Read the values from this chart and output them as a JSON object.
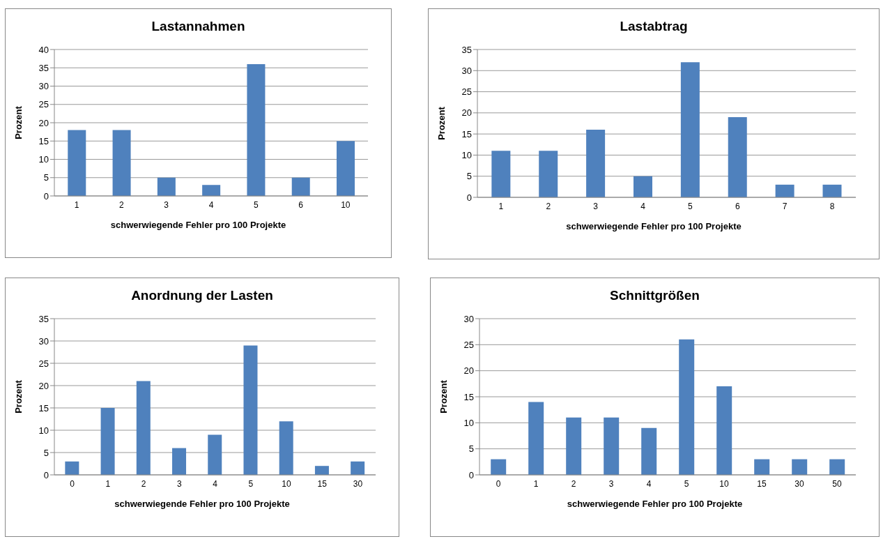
{
  "chart_data": [
    {
      "type": "bar",
      "title": "Lastannahmen",
      "xlabel": "schwerwiegende Fehler pro 100 Projekte",
      "ylabel": "Prozent",
      "categories": [
        "1",
        "2",
        "3",
        "4",
        "5",
        "6",
        "10"
      ],
      "values": [
        18,
        18,
        5,
        3,
        36,
        5,
        15
      ],
      "color": "#4f81bd",
      "ylim": [
        0,
        40
      ],
      "yticks": [
        0,
        5,
        10,
        15,
        20,
        25,
        30,
        35,
        40
      ],
      "grid": "y"
    },
    {
      "type": "bar",
      "title": "Lastabtrag",
      "xlabel": "schwerwiegende Fehler pro 100 Projekte",
      "ylabel": "Prozent",
      "categories": [
        "1",
        "2",
        "3",
        "4",
        "5",
        "6",
        "7",
        "8"
      ],
      "values": [
        11,
        11,
        16,
        5,
        32,
        19,
        3,
        3
      ],
      "color": "#4f81bd",
      "ylim": [
        0,
        35
      ],
      "yticks": [
        0,
        5,
        10,
        15,
        20,
        25,
        30,
        35
      ],
      "grid": "y"
    },
    {
      "type": "bar",
      "title": "Anordnung der Lasten",
      "xlabel": "schwerwiegende Fehler pro 100 Projekte",
      "ylabel": "Prozent",
      "categories": [
        "0",
        "1",
        "2",
        "3",
        "4",
        "5",
        "10",
        "15",
        "30"
      ],
      "values": [
        3,
        15,
        21,
        6,
        9,
        29,
        12,
        2,
        3
      ],
      "color": "#4f81bd",
      "ylim": [
        0,
        35
      ],
      "yticks": [
        0,
        5,
        10,
        15,
        20,
        25,
        30,
        35
      ],
      "grid": "y"
    },
    {
      "type": "bar",
      "title": "Schnittgrößen",
      "xlabel": "schwerwiegende Fehler pro 100 Projekte",
      "ylabel": "Prozent",
      "categories": [
        "0",
        "1",
        "2",
        "3",
        "4",
        "5",
        "10",
        "15",
        "30",
        "50"
      ],
      "values": [
        3,
        14,
        11,
        11,
        9,
        26,
        17,
        3,
        3,
        3
      ],
      "color": "#4f81bd",
      "ylim": [
        0,
        30
      ],
      "yticks": [
        0,
        5,
        10,
        15,
        20,
        25,
        30
      ],
      "grid": "y"
    }
  ]
}
